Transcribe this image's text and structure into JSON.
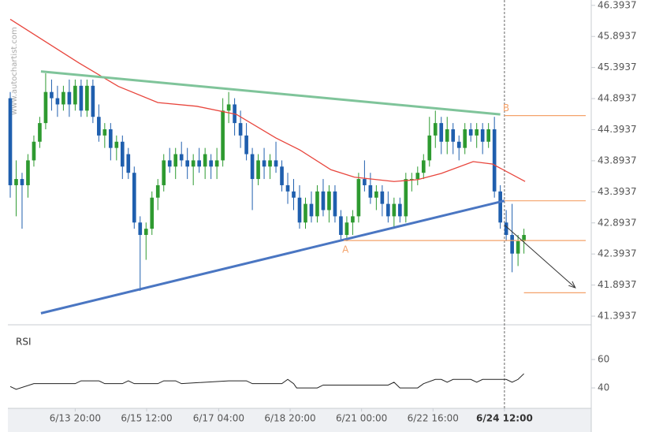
{
  "chart_data": {
    "type": "candlestick",
    "watermark": "www.autochartist.com",
    "xlim": [
      -0.4,
      98.4
    ],
    "xticks": [
      {
        "value": 11,
        "label": "6/13 20:00"
      },
      {
        "value": 23.1,
        "label": "6/15 12:00"
      },
      {
        "value": 35.3,
        "label": "6/17 04:00"
      },
      {
        "value": 47.4,
        "label": "6/18 20:00"
      },
      {
        "value": 59.5,
        "label": "6/21 00:00"
      },
      {
        "value": 71.6,
        "label": "6/22 16:00"
      },
      {
        "value": 83.7,
        "label": "6/24 12:00"
      }
    ],
    "current_line": 83.7,
    "ylim": [
      41.28,
      46.48
    ],
    "yticks": [
      46.3937,
      45.8937,
      45.3937,
      44.8937,
      44.3937,
      43.8937,
      43.3937,
      42.8937,
      42.3937,
      41.8937,
      41.3937
    ],
    "up_color": "#2e9a30",
    "down_color": "#1f5fae",
    "open": [
      44.9,
      43.5,
      43.6,
      43.5,
      43.9,
      44.2,
      44.5,
      45.0,
      44.9,
      44.8,
      45.0,
      44.8,
      45.1,
      44.7,
      45.1,
      44.6,
      44.3,
      44.4,
      44.1,
      44.2,
      44.0,
      43.7,
      42.9,
      42.7,
      42.8,
      43.3,
      43.5,
      43.9,
      43.8,
      44.0,
      43.9,
      43.8,
      43.9,
      43.8,
      43.9,
      43.8,
      43.9,
      44.7,
      44.8,
      44.5,
      44.3,
      44.0,
      43.6,
      43.9,
      43.8,
      43.9,
      43.8,
      43.5,
      43.4,
      43.3,
      42.9,
      43.2,
      43.0,
      43.4,
      43.1,
      43.4,
      43.0,
      42.7,
      42.9,
      43.0,
      43.6,
      43.5,
      43.3,
      43.4,
      43.2,
      43.0,
      43.2,
      43.0,
      43.6,
      43.6,
      43.7,
      43.9,
      44.3,
      44.5,
      44.2,
      44.4,
      44.2,
      44.1,
      44.4,
      44.3,
      44.4,
      44.2,
      44.4,
      43.4,
      42.9,
      42.7,
      42.4,
      42.6
    ],
    "high": [
      45.0,
      43.9,
      43.7,
      44.0,
      44.3,
      44.6,
      45.3,
      45.2,
      45.1,
      45.1,
      45.2,
      45.2,
      45.2,
      45.2,
      45.2,
      44.8,
      44.5,
      44.5,
      44.3,
      44.3,
      44.1,
      43.8,
      43.0,
      42.9,
      43.4,
      43.6,
      44.0,
      44.1,
      44.1,
      44.2,
      44.1,
      44.0,
      44.1,
      44.1,
      44.0,
      44.1,
      44.9,
      45.0,
      44.9,
      44.7,
      44.5,
      44.1,
      44.0,
      44.1,
      44.0,
      44.2,
      43.9,
      43.7,
      43.6,
      43.5,
      43.3,
      43.4,
      43.5,
      43.6,
      43.5,
      43.5,
      43.1,
      43.0,
      43.1,
      43.7,
      43.9,
      43.7,
      43.5,
      43.5,
      43.4,
      43.3,
      43.3,
      43.7,
      43.7,
      43.8,
      44.0,
      44.6,
      44.7,
      44.6,
      44.6,
      44.5,
      44.3,
      44.5,
      44.5,
      44.5,
      44.5,
      44.5,
      44.6,
      43.5,
      43.1,
      43.2,
      42.7,
      42.8
    ],
    "low": [
      43.3,
      43.0,
      42.8,
      43.3,
      43.8,
      44.1,
      44.4,
      44.7,
      44.6,
      44.7,
      44.6,
      44.7,
      44.6,
      44.6,
      44.5,
      44.2,
      44.1,
      43.9,
      43.9,
      43.6,
      43.6,
      42.8,
      41.8,
      42.3,
      42.7,
      43.1,
      43.4,
      43.7,
      43.6,
      43.8,
      43.6,
      43.5,
      43.7,
      43.6,
      43.6,
      43.6,
      43.8,
      44.5,
      44.3,
      44.1,
      43.9,
      43.1,
      43.5,
      43.6,
      43.6,
      43.7,
      43.4,
      43.2,
      43.1,
      42.8,
      42.8,
      42.9,
      42.9,
      43.0,
      42.9,
      42.9,
      42.6,
      42.6,
      42.7,
      42.9,
      43.4,
      43.2,
      43.1,
      43.0,
      42.9,
      42.8,
      42.9,
      42.9,
      43.4,
      43.5,
      43.6,
      43.8,
      44.1,
      44.0,
      44.0,
      44.0,
      43.9,
      44.0,
      44.2,
      44.1,
      44.0,
      44.1,
      43.3,
      42.8,
      42.6,
      42.1,
      42.2,
      42.4
    ],
    "close": [
      43.5,
      43.6,
      43.5,
      43.9,
      44.2,
      44.5,
      45.0,
      44.9,
      44.8,
      45.0,
      44.8,
      45.1,
      44.7,
      45.1,
      44.6,
      44.3,
      44.4,
      44.1,
      44.2,
      43.8,
      43.7,
      42.9,
      42.7,
      42.8,
      43.3,
      43.5,
      43.9,
      43.8,
      44.0,
      43.9,
      43.8,
      43.9,
      43.8,
      44.0,
      43.8,
      43.9,
      44.7,
      44.8,
      44.5,
      44.3,
      44.0,
      43.6,
      43.9,
      43.8,
      43.9,
      43.8,
      43.5,
      43.4,
      43.3,
      42.9,
      43.2,
      43.0,
      43.4,
      43.1,
      43.4,
      43.0,
      42.7,
      42.9,
      43.0,
      43.6,
      43.5,
      43.3,
      43.4,
      43.2,
      43.0,
      43.2,
      43.0,
      43.6,
      43.6,
      43.7,
      43.9,
      44.3,
      44.5,
      44.2,
      44.4,
      44.2,
      44.1,
      44.4,
      44.3,
      44.4,
      44.2,
      44.4,
      43.4,
      42.9,
      42.7,
      42.4,
      42.6,
      42.7
    ],
    "moving_average": {
      "color": "#e8453c",
      "x": [
        0,
        11.6,
        18.3,
        25,
        31.6,
        38.3,
        45,
        49,
        54.3,
        58.3,
        65,
        69,
        73,
        78.4,
        81.7,
        87.2
      ],
      "values": [
        46.17,
        45.47,
        45.09,
        44.83,
        44.77,
        44.64,
        44.26,
        44.07,
        43.75,
        43.63,
        43.56,
        43.59,
        43.69,
        43.88,
        43.84,
        43.56
      ]
    },
    "trend_lines": [
      {
        "color": "#7fc49a",
        "x": [
          5.2,
          83
        ],
        "values": [
          45.33,
          44.64
        ]
      },
      {
        "color": "#4a76c2",
        "x": [
          5.2,
          83.7
        ],
        "values": [
          41.44,
          43.25
        ]
      }
    ],
    "levels": [
      {
        "value": 44.62,
        "x_start": 83.7,
        "label": "B"
      },
      {
        "value": 43.25,
        "x_start": 83.7
      },
      {
        "value": 42.61,
        "x_start": 56.5,
        "label": "A"
      },
      {
        "value": 41.77,
        "x_start": 87
      }
    ],
    "level_color": "#f4a26a",
    "arrow": {
      "color": "#333333",
      "x": [
        83.7,
        95.7
      ],
      "values": [
        42.86,
        41.85
      ]
    },
    "rsi": {
      "label": "RSI",
      "color": "#222222",
      "ylim": [
        25.6,
        82.8
      ],
      "yticks": [
        60,
        40
      ],
      "x": [
        0,
        1,
        4,
        11,
        12,
        15,
        16,
        19,
        20,
        21,
        25,
        26,
        28,
        29,
        37,
        40,
        41,
        46,
        47,
        48,
        48.5,
        52,
        53,
        64,
        65,
        66,
        69,
        70,
        72,
        73,
        74,
        75,
        78,
        79,
        80,
        82,
        84,
        85,
        86,
        87
      ],
      "values": [
        41,
        39,
        43,
        43,
        45,
        45,
        43,
        43,
        45,
        43,
        43,
        45,
        45,
        43,
        45,
        45,
        43,
        43,
        46,
        43,
        40,
        40,
        42,
        42,
        44,
        40,
        40,
        43,
        46,
        46,
        44,
        46,
        46,
        44,
        46,
        46,
        46,
        44,
        46,
        50
      ]
    }
  }
}
